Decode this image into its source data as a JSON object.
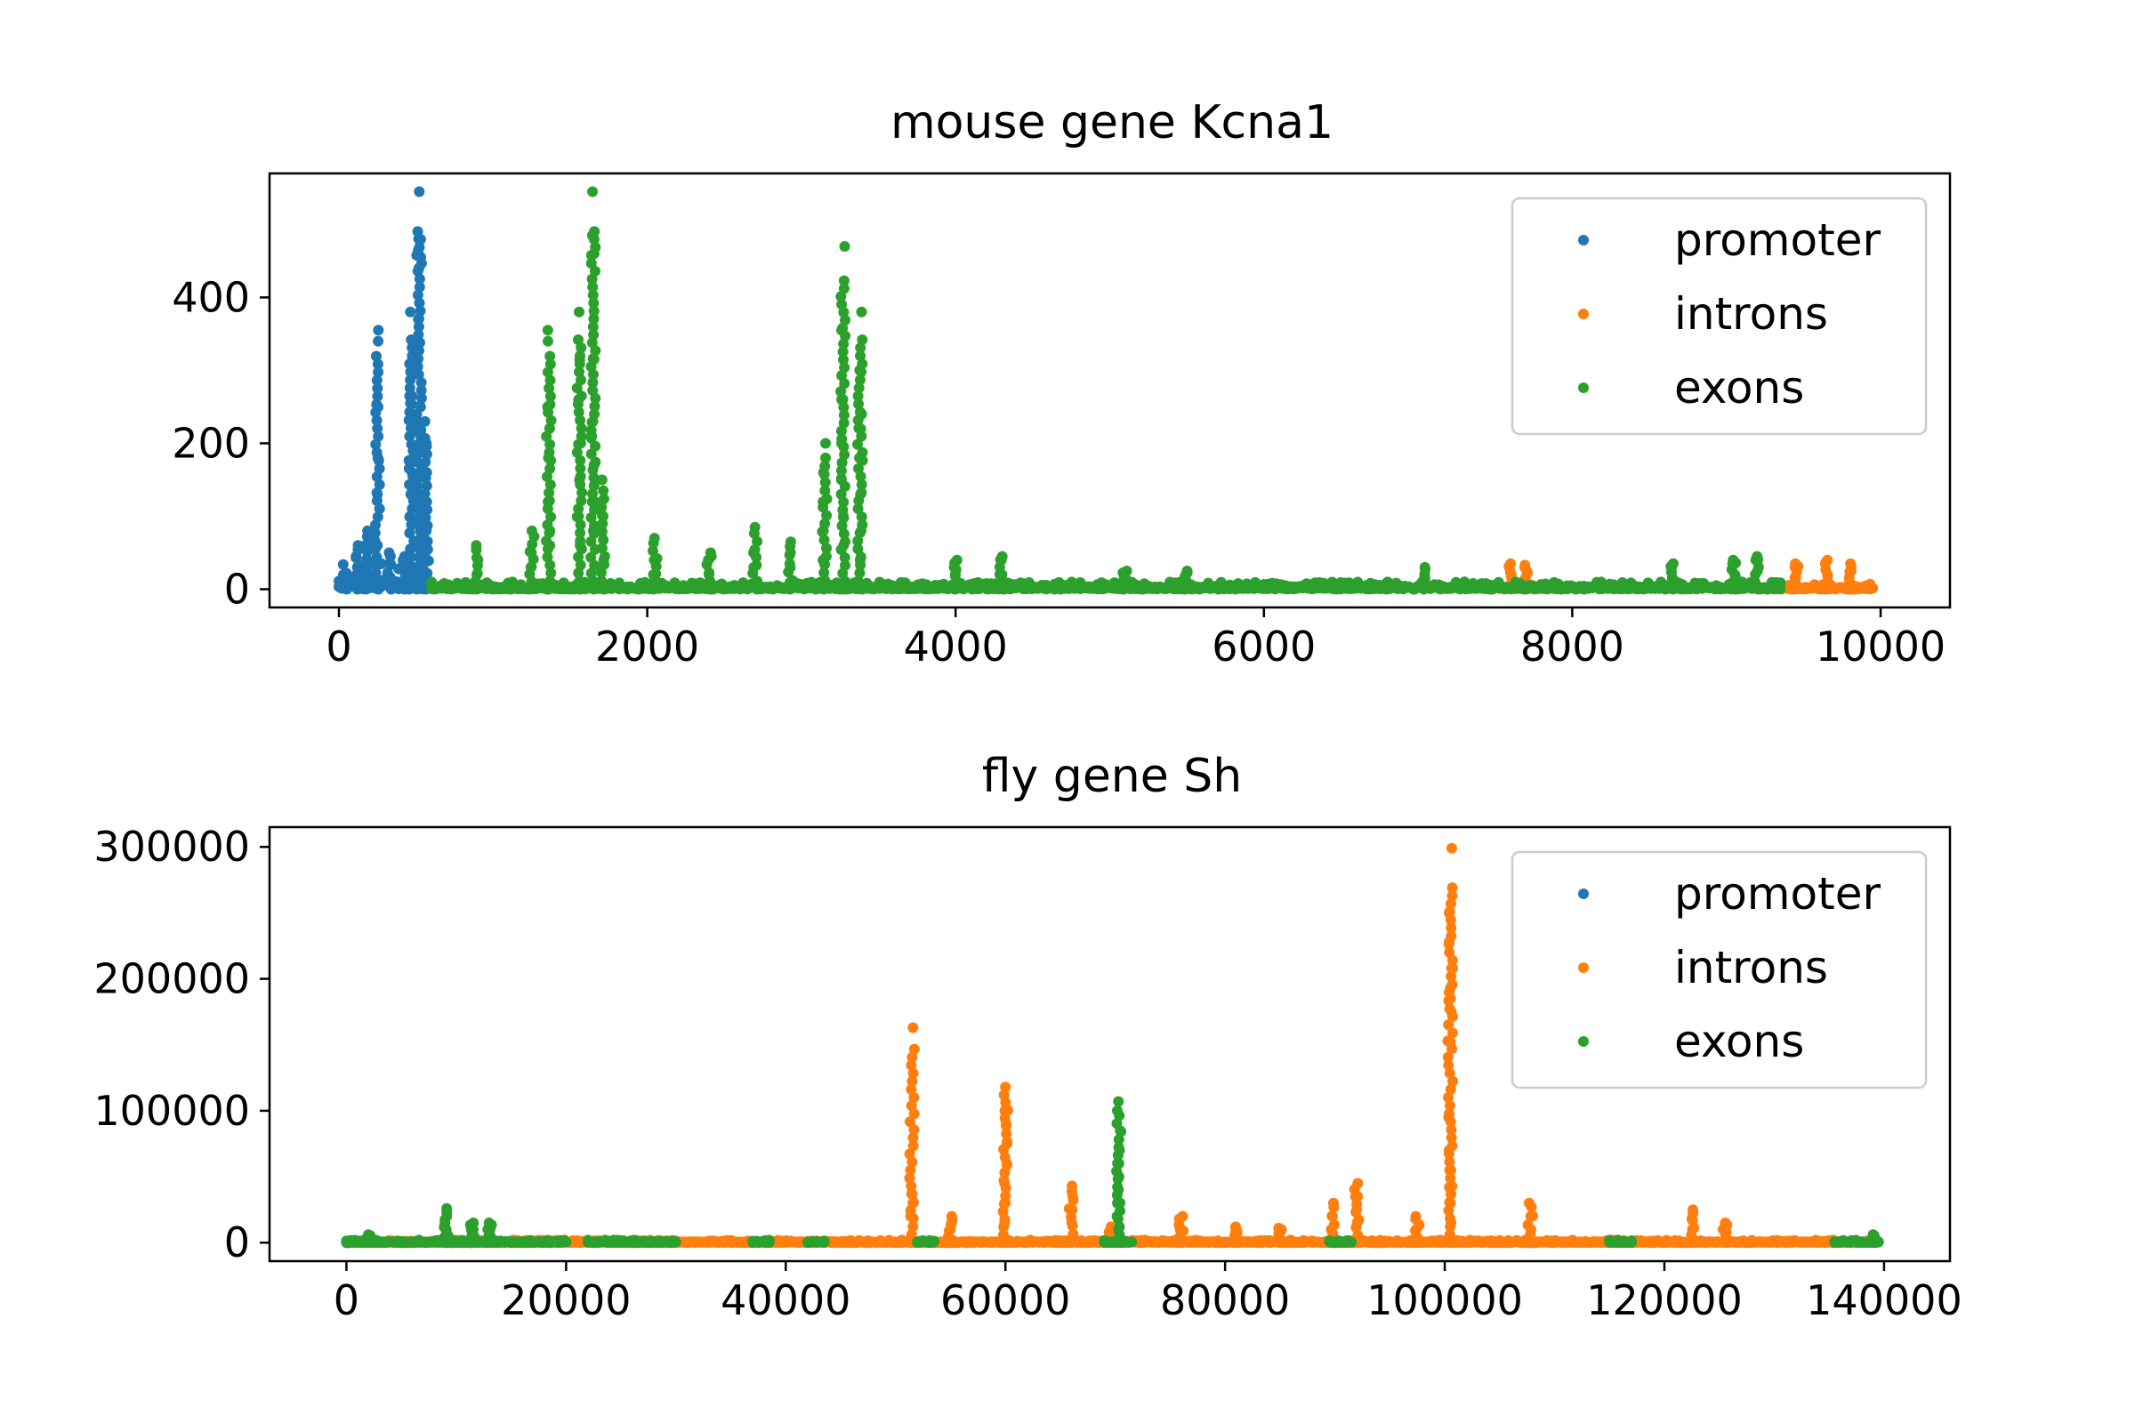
{
  "colors": {
    "promoter": "#1f77b4",
    "introns": "#ff7f0e",
    "exons": "#2ca02c",
    "axes": "#000000",
    "legend_border": "#cccccc"
  },
  "chart_data": [
    {
      "type": "scatter",
      "title": "mouse gene Kcna1",
      "xlabel": "",
      "ylabel": "",
      "xlim": [
        -450,
        10450
      ],
      "ylim": [
        -25,
        570
      ],
      "xticks": [
        0,
        2000,
        4000,
        6000,
        8000,
        10000
      ],
      "yticks": [
        0,
        200,
        400
      ],
      "grid": false,
      "legend": {
        "placement": "top-right",
        "entries": [
          "promoter",
          "introns",
          "exons"
        ]
      },
      "series": [
        {
          "name": "promoter",
          "x_range": [
            0,
            600
          ],
          "baseline_max": 40,
          "spikes": [
            {
              "x": 40,
              "values": [
                15,
                22
              ]
            },
            {
              "x": 120,
              "values": [
                30,
                45,
                60
              ]
            },
            {
              "x": 180,
              "values": [
                40,
                60,
                80
              ]
            },
            {
              "x": 250,
              "values": [
                60,
                130,
                180,
                250,
                340,
                355
              ]
            },
            {
              "x": 330,
              "values": [
                35,
                50
              ]
            },
            {
              "x": 420,
              "values": [
                30,
                45
              ]
            },
            {
              "x": 470,
              "values": [
                100,
                130,
                160,
                190,
                215,
                255,
                265,
                315,
                380
              ]
            },
            {
              "x": 520,
              "values": [
                80,
                120,
                160,
                200,
                250,
                315,
                370,
                440,
                455,
                465,
                480,
                545
              ]
            },
            {
              "x": 560,
              "values": [
                50,
                80,
                130,
                160,
                200,
                230
              ]
            }
          ]
        },
        {
          "name": "introns",
          "x_range": [
            7450,
            9950
          ],
          "baseline_max": 8,
          "segments": [
            [
              7450,
              7800
            ],
            [
              9350,
              9950
            ]
          ],
          "spikes": [
            {
              "x": 7600,
              "values": [
                20,
                30,
                35
              ]
            },
            {
              "x": 7700,
              "values": [
                25,
                33
              ]
            },
            {
              "x": 9450,
              "values": [
                15,
                30,
                35
              ]
            },
            {
              "x": 9650,
              "values": [
                20,
                35,
                40
              ]
            },
            {
              "x": 9800,
              "values": [
                25,
                35
              ]
            }
          ]
        },
        {
          "name": "exons",
          "x_range": [
            600,
            9350
          ],
          "baseline_max": 10,
          "spikes": [
            {
              "x": 900,
              "values": [
                20,
                40,
                60
              ]
            },
            {
              "x": 1250,
              "values": [
                30,
                50,
                80
              ]
            },
            {
              "x": 1360,
              "values": [
                60,
                80,
                120,
                180,
                250,
                340,
                355
              ]
            },
            {
              "x": 1560,
              "values": [
                60,
                100,
                150,
                200,
                260,
                315,
                380
              ]
            },
            {
              "x": 1650,
              "values": [
                80,
                120,
                170,
                210,
                230,
                315,
                460,
                485,
                545
              ]
            },
            {
              "x": 1710,
              "values": [
                40,
                100,
                150
              ]
            },
            {
              "x": 2050,
              "values": [
                20,
                40,
                70
              ]
            },
            {
              "x": 2400,
              "values": [
                20,
                40,
                50
              ]
            },
            {
              "x": 2700,
              "values": [
                30,
                50,
                85
              ]
            },
            {
              "x": 2930,
              "values": [
                30,
                50,
                65
              ]
            },
            {
              "x": 3150,
              "values": [
                40,
                80,
                120,
                160,
                200
              ]
            },
            {
              "x": 3270,
              "values": [
                60,
                100,
                150,
                200,
                260,
                355,
                470
              ]
            },
            {
              "x": 3380,
              "values": [
                40,
                80,
                130,
                180,
                220,
                240,
                300,
                380
              ]
            },
            {
              "x": 4000,
              "values": [
                20,
                30,
                40
              ]
            },
            {
              "x": 4300,
              "values": [
                20,
                40,
                45
              ]
            },
            {
              "x": 5100,
              "values": [
                15,
                25
              ]
            },
            {
              "x": 5500,
              "values": [
                10,
                20,
                25
              ]
            },
            {
              "x": 7050,
              "values": [
                15,
                30
              ]
            },
            {
              "x": 8650,
              "values": [
                15,
                30,
                35
              ]
            },
            {
              "x": 9050,
              "values": [
                20,
                35,
                40
              ]
            },
            {
              "x": 9200,
              "values": [
                25,
                40,
                45
              ]
            }
          ]
        }
      ]
    },
    {
      "type": "scatter",
      "title": "fly gene Sh",
      "xlabel": "",
      "ylabel": "",
      "xlim": [
        -7000,
        146000
      ],
      "ylim": [
        -14000,
        315000
      ],
      "xticks": [
        0,
        20000,
        40000,
        60000,
        80000,
        100000,
        120000,
        140000
      ],
      "yticks": [
        0,
        100000,
        200000,
        300000
      ],
      "grid": false,
      "legend": {
        "placement": "top-right",
        "entries": [
          "promoter",
          "introns",
          "exons"
        ]
      },
      "series": [
        {
          "name": "promoter",
          "x_range": [
            0,
            200
          ],
          "baseline_max": 500,
          "spikes": []
        },
        {
          "name": "introns",
          "x_range": [
            800,
            139500
          ],
          "baseline_max": 2000,
          "spikes": [
            {
              "x": 51500,
              "values": [
                20000,
                30000,
                37000,
                163000
              ]
            },
            {
              "x": 55000,
              "values": [
                10000,
                15000,
                20000
              ]
            },
            {
              "x": 60000,
              "values": [
                15000,
                30000,
                45000,
                60000,
                75000,
                90000,
                100000,
                112000,
                118000
              ]
            },
            {
              "x": 66000,
              "values": [
                15000,
                25000,
                35000,
                43000
              ]
            },
            {
              "x": 69500,
              "values": [
                8000,
                12000
              ]
            },
            {
              "x": 76000,
              "values": [
                10000,
                20000
              ]
            },
            {
              "x": 81000,
              "values": [
                8000,
                12000
              ]
            },
            {
              "x": 85000,
              "values": [
                8000,
                11000
              ]
            },
            {
              "x": 89800,
              "values": [
                10000,
                20000,
                30000
              ]
            },
            {
              "x": 92000,
              "values": [
                15000,
                25000,
                35000,
                45000
              ]
            },
            {
              "x": 97500,
              "values": [
                10000,
                20000
              ]
            },
            {
              "x": 100500,
              "values": [
                15000,
                30000,
                42000,
                55000,
                70000,
                95000,
                152000,
                175000,
                185000,
                193000,
                208000,
                228000,
                250000,
                299000
              ]
            },
            {
              "x": 107800,
              "values": [
                10000,
                20000,
                30000
              ]
            },
            {
              "x": 122600,
              "values": [
                10000,
                18000,
                25000
              ]
            },
            {
              "x": 125500,
              "values": [
                8000,
                15000
              ]
            }
          ]
        },
        {
          "name": "exons",
          "x_range": [
            0,
            139500
          ],
          "segments": [
            [
              0,
              20000
            ],
            [
              22000,
              30000
            ],
            [
              37000,
              38500
            ],
            [
              42000,
              43500
            ],
            [
              52000,
              53500
            ],
            [
              69000,
              71500
            ],
            [
              89500,
              91500
            ],
            [
              115000,
              117000
            ],
            [
              135500,
              139500
            ]
          ],
          "baseline_max": 2000,
          "spikes": [
            {
              "x": 2000,
              "values": [
                3000,
                6000
              ]
            },
            {
              "x": 9000,
              "values": [
                5000,
                10000,
                15000,
                20000,
                26000
              ]
            },
            {
              "x": 11500,
              "values": [
                5000,
                10000,
                15000
              ]
            },
            {
              "x": 13000,
              "values": [
                5000,
                10000,
                15000
              ]
            },
            {
              "x": 70300,
              "values": [
                10000,
                20000,
                30000,
                40000,
                50000,
                60000,
                70000,
                85000,
                100000,
                107000
              ]
            },
            {
              "x": 139000,
              "values": [
                3000,
                6000
              ]
            }
          ]
        }
      ]
    }
  ]
}
